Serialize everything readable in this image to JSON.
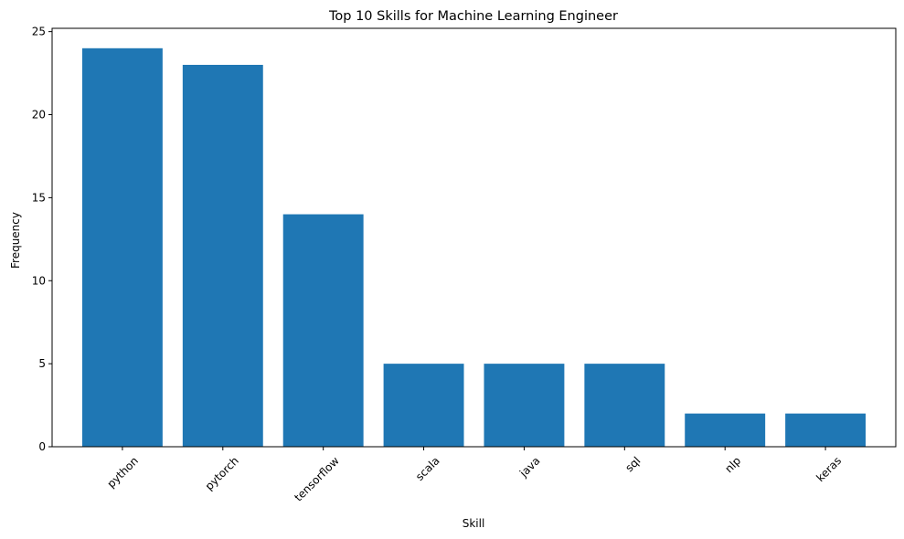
{
  "chart_data": {
    "type": "bar",
    "title": "Top 10 Skills for Machine Learning Engineer",
    "xlabel": "Skill",
    "ylabel": "Frequency",
    "categories": [
      "python",
      "pytorch",
      "tensorflow",
      "scala",
      "java",
      "sql",
      "nlp",
      "keras"
    ],
    "values": [
      24,
      23,
      14,
      5,
      5,
      5,
      2,
      2
    ],
    "ylim": [
      0,
      25.2
    ],
    "yticks": [
      0,
      5,
      10,
      15,
      20,
      25
    ],
    "grid": false,
    "bar_color": "#1f77b4",
    "x_tick_rotation_deg": -45
  }
}
